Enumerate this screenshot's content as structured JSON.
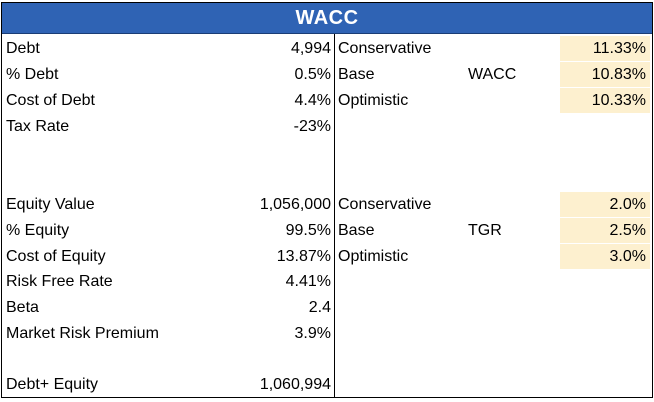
{
  "title": "WACC",
  "left": {
    "debt": {
      "label": "Debt",
      "value": "4,994"
    },
    "pct_debt": {
      "label": "% Debt",
      "value": "0.5%"
    },
    "cost_of_debt": {
      "label": "Cost of Debt",
      "value": "4.4%"
    },
    "tax_rate": {
      "label": "Tax Rate",
      "value": "-23%"
    },
    "equity_value": {
      "label": "Equity Value",
      "value": "1,056,000"
    },
    "pct_equity": {
      "label": "% Equity",
      "value": "99.5%"
    },
    "cost_of_equity": {
      "label": "Cost of Equity",
      "value": "13.87%"
    },
    "risk_free_rate": {
      "label": "Risk Free Rate",
      "value": "4.41%"
    },
    "beta": {
      "label": "Beta",
      "value": "2.4"
    },
    "market_risk_premium": {
      "label": "Market Risk Premium",
      "value": "3.9%"
    },
    "debt_plus_equity": {
      "label": "Debt+ Equity",
      "value": "1,060,994"
    }
  },
  "wacc_scenarios": {
    "label": "WACC",
    "rows": [
      {
        "name": "Conservative",
        "value": "11.33%"
      },
      {
        "name": "Base",
        "value": "10.83%"
      },
      {
        "name": "Optimistic",
        "value": "10.33%"
      }
    ]
  },
  "tgr_scenarios": {
    "label": "TGR",
    "rows": [
      {
        "name": "Conservative",
        "value": "2.0%"
      },
      {
        "name": "Base",
        "value": "2.5%"
      },
      {
        "name": "Optimistic",
        "value": "3.0%"
      }
    ]
  },
  "colors": {
    "header_bg": "#2f63b4",
    "header_text": "#ffffff",
    "highlight": "#fdf0cf"
  }
}
